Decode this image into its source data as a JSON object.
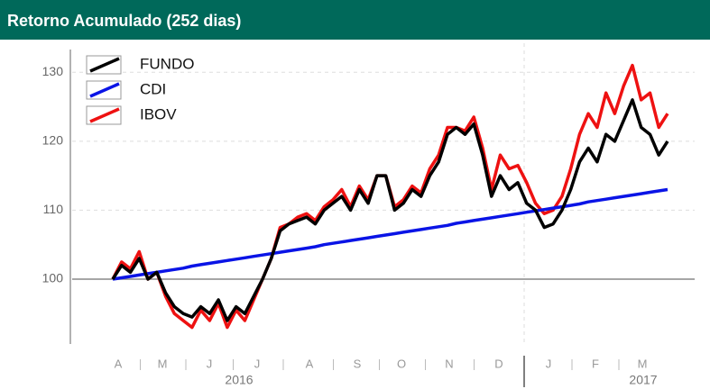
{
  "chart_data": {
    "type": "line",
    "title": "Retorno Acumulado (252 dias)",
    "months": [
      "A",
      "M",
      "J",
      "J",
      "A",
      "S",
      "O",
      "N",
      "D",
      "J",
      "F",
      "M"
    ],
    "years": [
      "2016",
      "2017"
    ],
    "ylim": [
      90.6,
      133.3
    ],
    "yticks": [
      100,
      110,
      120,
      130
    ],
    "grid": true,
    "legend": "top-left",
    "series": [
      {
        "name": "FUNDO",
        "color": "#000000",
        "values": [
          100,
          102,
          101,
          103,
          100,
          101,
          98,
          96,
          95,
          94.5,
          96,
          95,
          97,
          94,
          96,
          95,
          97.5,
          100,
          103,
          107,
          108,
          108.5,
          109,
          108,
          110,
          111,
          112,
          110,
          113,
          111,
          115,
          115,
          110,
          111,
          113,
          112,
          115,
          117,
          121,
          122,
          121,
          122.5,
          118,
          112,
          115,
          113,
          114,
          111,
          110,
          107.5,
          108,
          110,
          113,
          117,
          119,
          117,
          121,
          120,
          123,
          126,
          122,
          121,
          118,
          120
        ]
      },
      {
        "name": "CDI",
        "color": "#0a14e6",
        "values": [
          100,
          100.2,
          100.4,
          100.6,
          100.8,
          101,
          101.2,
          101.4,
          101.6,
          101.9,
          102.1,
          102.3,
          102.5,
          102.7,
          102.9,
          103.1,
          103.3,
          103.5,
          103.7,
          103.9,
          104.1,
          104.3,
          104.5,
          104.7,
          105,
          105.2,
          105.4,
          105.6,
          105.8,
          106,
          106.2,
          106.4,
          106.6,
          106.8,
          107,
          107.2,
          107.4,
          107.6,
          107.8,
          108.1,
          108.3,
          108.5,
          108.7,
          108.9,
          109.1,
          109.3,
          109.5,
          109.7,
          109.9,
          110.1,
          110.3,
          110.5,
          110.7,
          110.9,
          111.2,
          111.4,
          111.6,
          111.8,
          112,
          112.2,
          112.4,
          112.6,
          112.8,
          113
        ]
      },
      {
        "name": "IBOV",
        "color": "#ee1111",
        "values": [
          100,
          102.5,
          101.5,
          104,
          100,
          101,
          97.5,
          95,
          94,
          93,
          95.5,
          94,
          96.5,
          93,
          95.5,
          94,
          97,
          100,
          103,
          107.5,
          108,
          109,
          109.5,
          108.5,
          110.5,
          111.5,
          113,
          110.5,
          113.5,
          111.5,
          115,
          115,
          110.5,
          111.5,
          113.5,
          112.5,
          116,
          118,
          122,
          122,
          121.5,
          123.5,
          119,
          113,
          118,
          116,
          116.5,
          114,
          111,
          109.5,
          110,
          112,
          116,
          121,
          124,
          122,
          127,
          124,
          128,
          131,
          126,
          127,
          122,
          124
        ]
      }
    ]
  }
}
